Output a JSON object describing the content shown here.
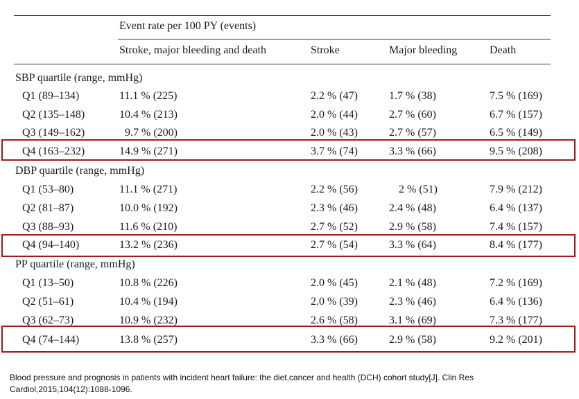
{
  "header": {
    "span_label": "Event rate per 100 PY (events)",
    "columns": [
      "Stroke, major bleeding and death",
      "Stroke",
      "Major bleeding",
      "Death"
    ]
  },
  "groups": [
    {
      "title": "SBP quartile (range, mmHg)",
      "rows": [
        {
          "label": "Q1 (89–134)",
          "values": [
            "11.1 % (225)",
            "2.2 % (47)",
            "1.7 % (38)",
            "7.5 % (169)"
          ]
        },
        {
          "label": "Q2 (135–148)",
          "values": [
            "10.4 % (213)",
            "2.0 % (44)",
            "2.7 % (60)",
            "6.7 % (157)"
          ]
        },
        {
          "label": "Q3 (149–162)",
          "values": [
            "9.7 % (200)",
            "2.0 % (43)",
            "2.7 % (57)",
            "6.5 % (149)"
          ]
        },
        {
          "label": "Q4 (163–232)",
          "values": [
            "14.9 % (271)",
            "3.7 % (74)",
            "3.3 % (66)",
            "9.5 % (208)"
          ]
        }
      ]
    },
    {
      "title": "DBP quartile (range, mmHg)",
      "rows": [
        {
          "label": "Q1 (53–80)",
          "values": [
            "11.1 % (271)",
            "2.2 % (56)",
            "2 % (51)",
            "7.9 % (212)"
          ]
        },
        {
          "label": "Q2 (81–87)",
          "values": [
            "10.0 % (192)",
            "2.3 % (46)",
            "2.4 % (48)",
            "6.4 % (137)"
          ]
        },
        {
          "label": "Q3 (88–93)",
          "values": [
            "11.6 % (210)",
            "2.7 % (52)",
            "2.9 % (58)",
            "7.4 % (157)"
          ]
        },
        {
          "label": "Q4 (94–140)",
          "values": [
            "13.2 % (236)",
            "2.7 % (54)",
            "3.3 % (64)",
            "8.4 % (177)"
          ]
        }
      ]
    },
    {
      "title": "PP quartile (range, mmHg)",
      "rows": [
        {
          "label": "Q1 (13–50)",
          "values": [
            "10.8 % (226)",
            "2.0 % (45)",
            "2.1 % (48)",
            "7.2 % (169)"
          ]
        },
        {
          "label": "Q2 (51–61)",
          "values": [
            "10.4 % (194)",
            "2.0 % (39)",
            "2.3 % (46)",
            "6.4 % (136)"
          ]
        },
        {
          "label": "Q3 (62–73)",
          "values": [
            "10.9 % (232)",
            "2.6 % (58)",
            "3.1 % (69)",
            "7.3 % (177)"
          ]
        },
        {
          "label": "Q4 (74–144)",
          "values": [
            "13.8 % (257)",
            "3.3 % (66)",
            "2.9 % (58)",
            "9.2 % (201)"
          ]
        }
      ]
    }
  ],
  "citation": "Blood pressure and prognosis in patients with incident heart failure: the diet,cancer and health (DCH) cohort study[J]. Clin Res Cardiol,2015,104(12):1088-1096.",
  "colors": {
    "highlight_box": "#9b1c1c"
  }
}
